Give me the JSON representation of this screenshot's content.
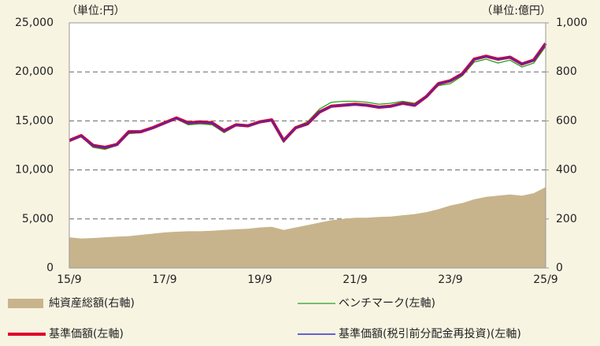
{
  "chart_data": {
    "type": "line",
    "unit_left": "（単位:円）",
    "unit_right": "（単位:億円）",
    "categories": [
      "15/9",
      null,
      null,
      null,
      null,
      null,
      null,
      null,
      "17/9",
      null,
      null,
      null,
      null,
      null,
      null,
      null,
      "19/9",
      null,
      null,
      null,
      null,
      null,
      null,
      null,
      "21/9",
      null,
      null,
      null,
      null,
      null,
      null,
      null,
      "23/9",
      null,
      null,
      null,
      null,
      null,
      null,
      null,
      "25/9"
    ],
    "ylim": [
      0,
      25000
    ],
    "yticks": [
      0,
      {
        "value": 5000,
        "label": "5,000"
      },
      {
        "value": 10000,
        "label": "10,000"
      },
      {
        "value": 15000,
        "label": "15,000"
      },
      {
        "value": 20000,
        "label": "20,000"
      },
      {
        "value": 25000,
        "label": "25,000"
      }
    ],
    "y2lim": [
      0,
      1000
    ],
    "y2ticks": [
      0,
      200,
      400,
      600,
      800,
      {
        "value": 1000,
        "label": "1,000"
      }
    ],
    "grid": true,
    "series": [
      {
        "name": "純資産総額(右軸)",
        "color": "#c8b48c",
        "style": "area",
        "axis": "y2",
        "values": [
          125,
          120,
          122,
          125,
          128,
          130,
          135,
          140,
          145,
          148,
          150,
          150,
          152,
          155,
          158,
          160,
          165,
          168,
          155,
          165,
          175,
          185,
          195,
          200,
          205,
          205,
          208,
          210,
          215,
          220,
          228,
          240,
          255,
          265,
          280,
          290,
          295,
          300,
          295,
          305,
          330
        ]
      },
      {
        "name": "ベンチマーク(左軸)",
        "color": "#22a022",
        "style": "line",
        "width": 1.3,
        "values": [
          12900,
          13400,
          12300,
          12100,
          12500,
          13700,
          13800,
          14200,
          14700,
          15200,
          14600,
          14700,
          14600,
          13800,
          14500,
          14400,
          14800,
          15000,
          12800,
          14400,
          14900,
          16200,
          16900,
          17000,
          17000,
          16900,
          16700,
          16800,
          17000,
          16800,
          17600,
          18600,
          18800,
          19600,
          21000,
          21300,
          20900,
          21200,
          20500,
          20900,
          22600
        ]
      },
      {
        "name": "基準価額(左軸)",
        "color": "#e0002a",
        "style": "line",
        "width": 4,
        "values": [
          13000,
          13500,
          12500,
          12300,
          12600,
          13900,
          13900,
          14300,
          14800,
          15300,
          14800,
          14900,
          14800,
          14000,
          14600,
          14500,
          14900,
          15100,
          13000,
          14300,
          14700,
          15900,
          16500,
          16600,
          16700,
          16600,
          16400,
          16500,
          16800,
          16600,
          17500,
          18800,
          19100,
          19800,
          21300,
          21600,
          21300,
          21500,
          20800,
          21200,
          22900
        ]
      },
      {
        "name": "基準価額(税引前分配金再投資)(左軸)",
        "color": "#3030d0",
        "style": "line",
        "width": 1.5,
        "values": [
          12980,
          13480,
          12480,
          12280,
          12580,
          13880,
          13880,
          14280,
          14780,
          15280,
          14780,
          14880,
          14780,
          13980,
          14580,
          14480,
          14880,
          15080,
          12980,
          14280,
          14680,
          15880,
          16480,
          16580,
          16680,
          16580,
          16380,
          16480,
          16780,
          16580,
          17480,
          18780,
          19080,
          19780,
          21280,
          21580,
          21280,
          21480,
          20780,
          21180,
          22880
        ]
      }
    ]
  }
}
